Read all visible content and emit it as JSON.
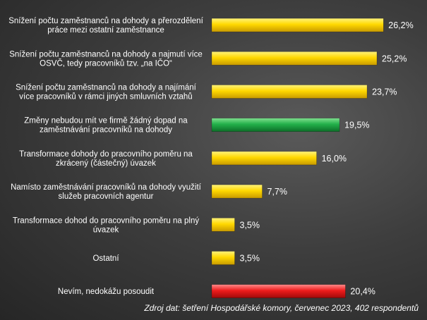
{
  "chart_data": {
    "type": "bar",
    "orientation": "horizontal",
    "categories": [
      [
        "Snížení počtu zaměstnanců na dohody a přerozdělení",
        "práce mezi ostatní zaměstnance"
      ],
      [
        "Snížení počtu zaměstnanců na dohody a najmutí více",
        "OSVČ, tedy pracovníků tzv. „na IČO“"
      ],
      [
        "Snížení počtu zaměstnanců na dohody a najímání",
        "více pracovníků v rámci jiných smluvních vztahů"
      ],
      [
        "Změny nebudou mít ve firmě žádný dopad na",
        "zaměstnávání pracovníků na dohody"
      ],
      [
        "Transformace dohody do pracovního poměru na",
        "zkrácený (částečný) úvazek"
      ],
      [
        "Namísto zaměstnávání pracovníků na dohody využití",
        "služeb pracovních agentur"
      ],
      [
        "Transformace dohod do pracovního poměru na plný",
        "úvazek"
      ],
      [
        "Ostatní"
      ],
      [
        "Nevím, nedokážu posoudit"
      ]
    ],
    "values": [
      26.2,
      25.2,
      23.7,
      19.5,
      16.0,
      7.7,
      3.5,
      3.5,
      20.4
    ],
    "value_labels": [
      "26,2%",
      "25,2%",
      "23,7%",
      "19,5%",
      "16,0%",
      "7,7%",
      "3,5%",
      "3,5%",
      "20,4%"
    ],
    "bar_colors": [
      "#ffd400",
      "#ffd400",
      "#ffd400",
      "#19a33a",
      "#ffd400",
      "#ffd400",
      "#ffd400",
      "#ffd400",
      "#ee1c1c"
    ],
    "xlim": [
      0,
      28
    ],
    "grid": false,
    "legend": "none"
  },
  "source_note": "Zdroj dat: šetření Hospodářské komory, červenec 2023, 402 respondentů"
}
